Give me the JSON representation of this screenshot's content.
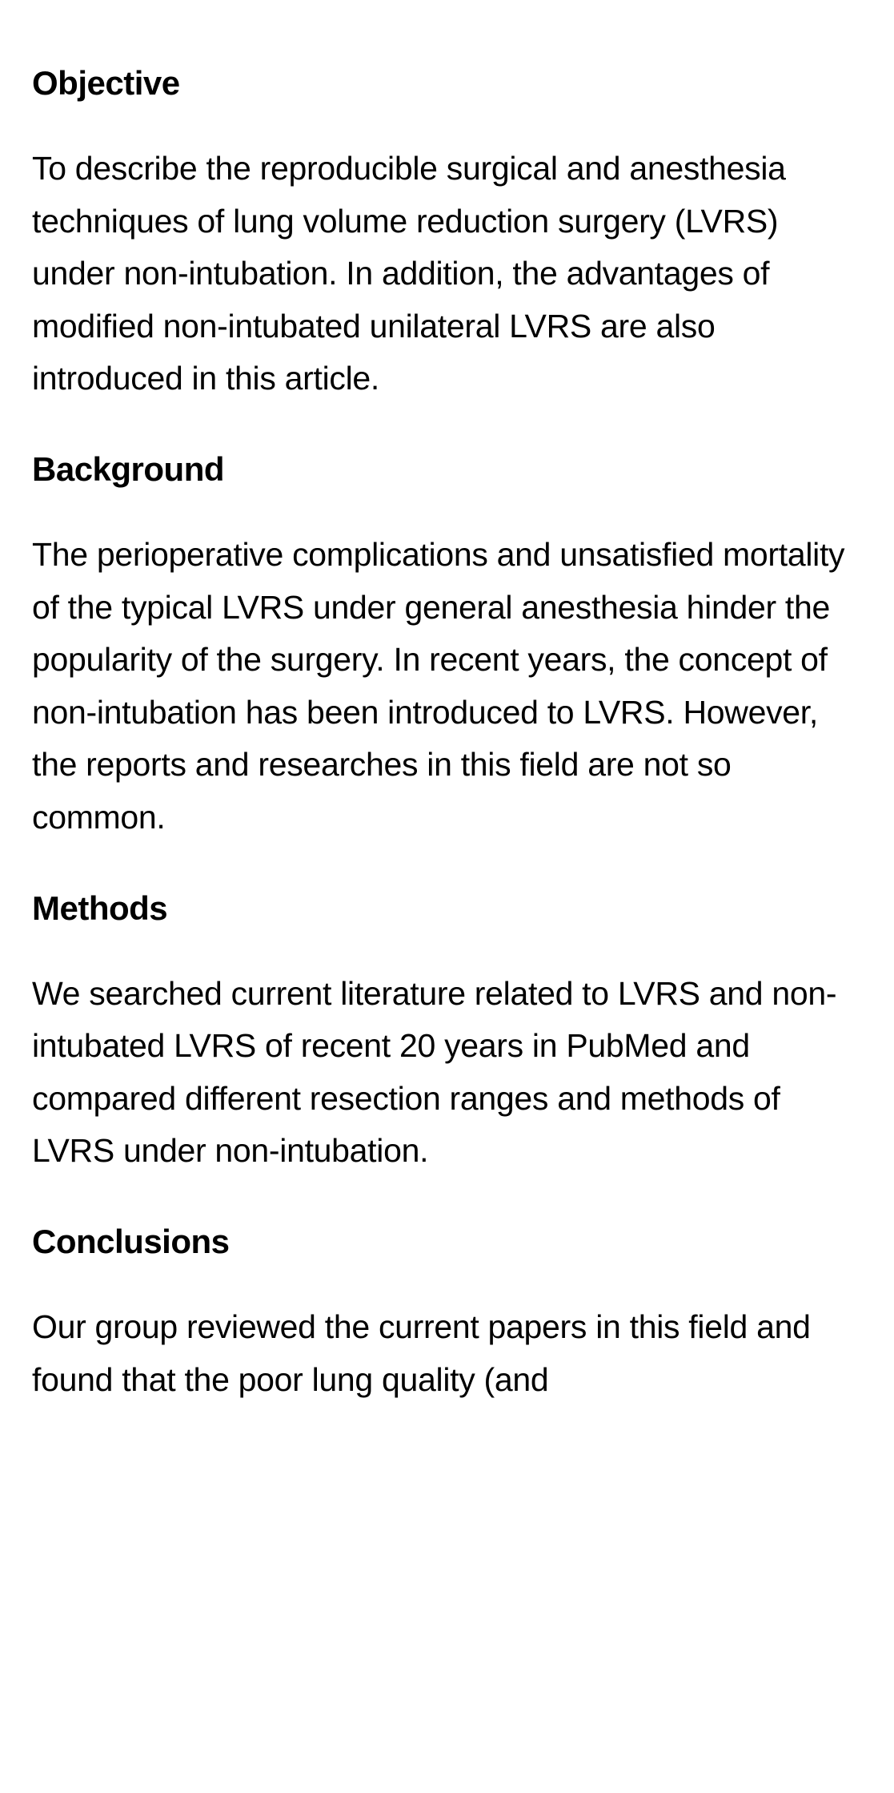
{
  "sections": {
    "objective": {
      "heading": "Objective",
      "body": "To describe the reproducible surgical and anesthesia techniques of lung volume reduction surgery (LVRS) under non-intubation. In addition, the advantages of modified non-intubated unilateral LVRS are also introduced in this article."
    },
    "background": {
      "heading": "Background",
      "body": "The perioperative complications and unsatisfied mortality of the typical LVRS under general anesthesia hinder the popularity of the surgery. In recent years, the concept of non-intubation has been introduced to LVRS. However, the reports and researches in this field are not so common."
    },
    "methods": {
      "heading": "Methods",
      "body": "We searched current literature related to LVRS and non-intubated LVRS of recent 20 years in PubMed and compared different resection ranges and methods of LVRS under non-intubation."
    },
    "conclusions": {
      "heading": "Conclusions",
      "body": "Our group reviewed the current papers in this field and found that the poor lung quality (and"
    }
  },
  "styles": {
    "background_color": "#ffffff",
    "text_color": "#000000",
    "heading_fontsize": 42,
    "heading_fontweight": 700,
    "body_fontsize": 41,
    "body_fontweight": 400,
    "body_lineheight": 1.6,
    "font_family": "-apple-system, BlinkMacSystemFont, Segoe UI, Helvetica, Arial, sans-serif"
  }
}
